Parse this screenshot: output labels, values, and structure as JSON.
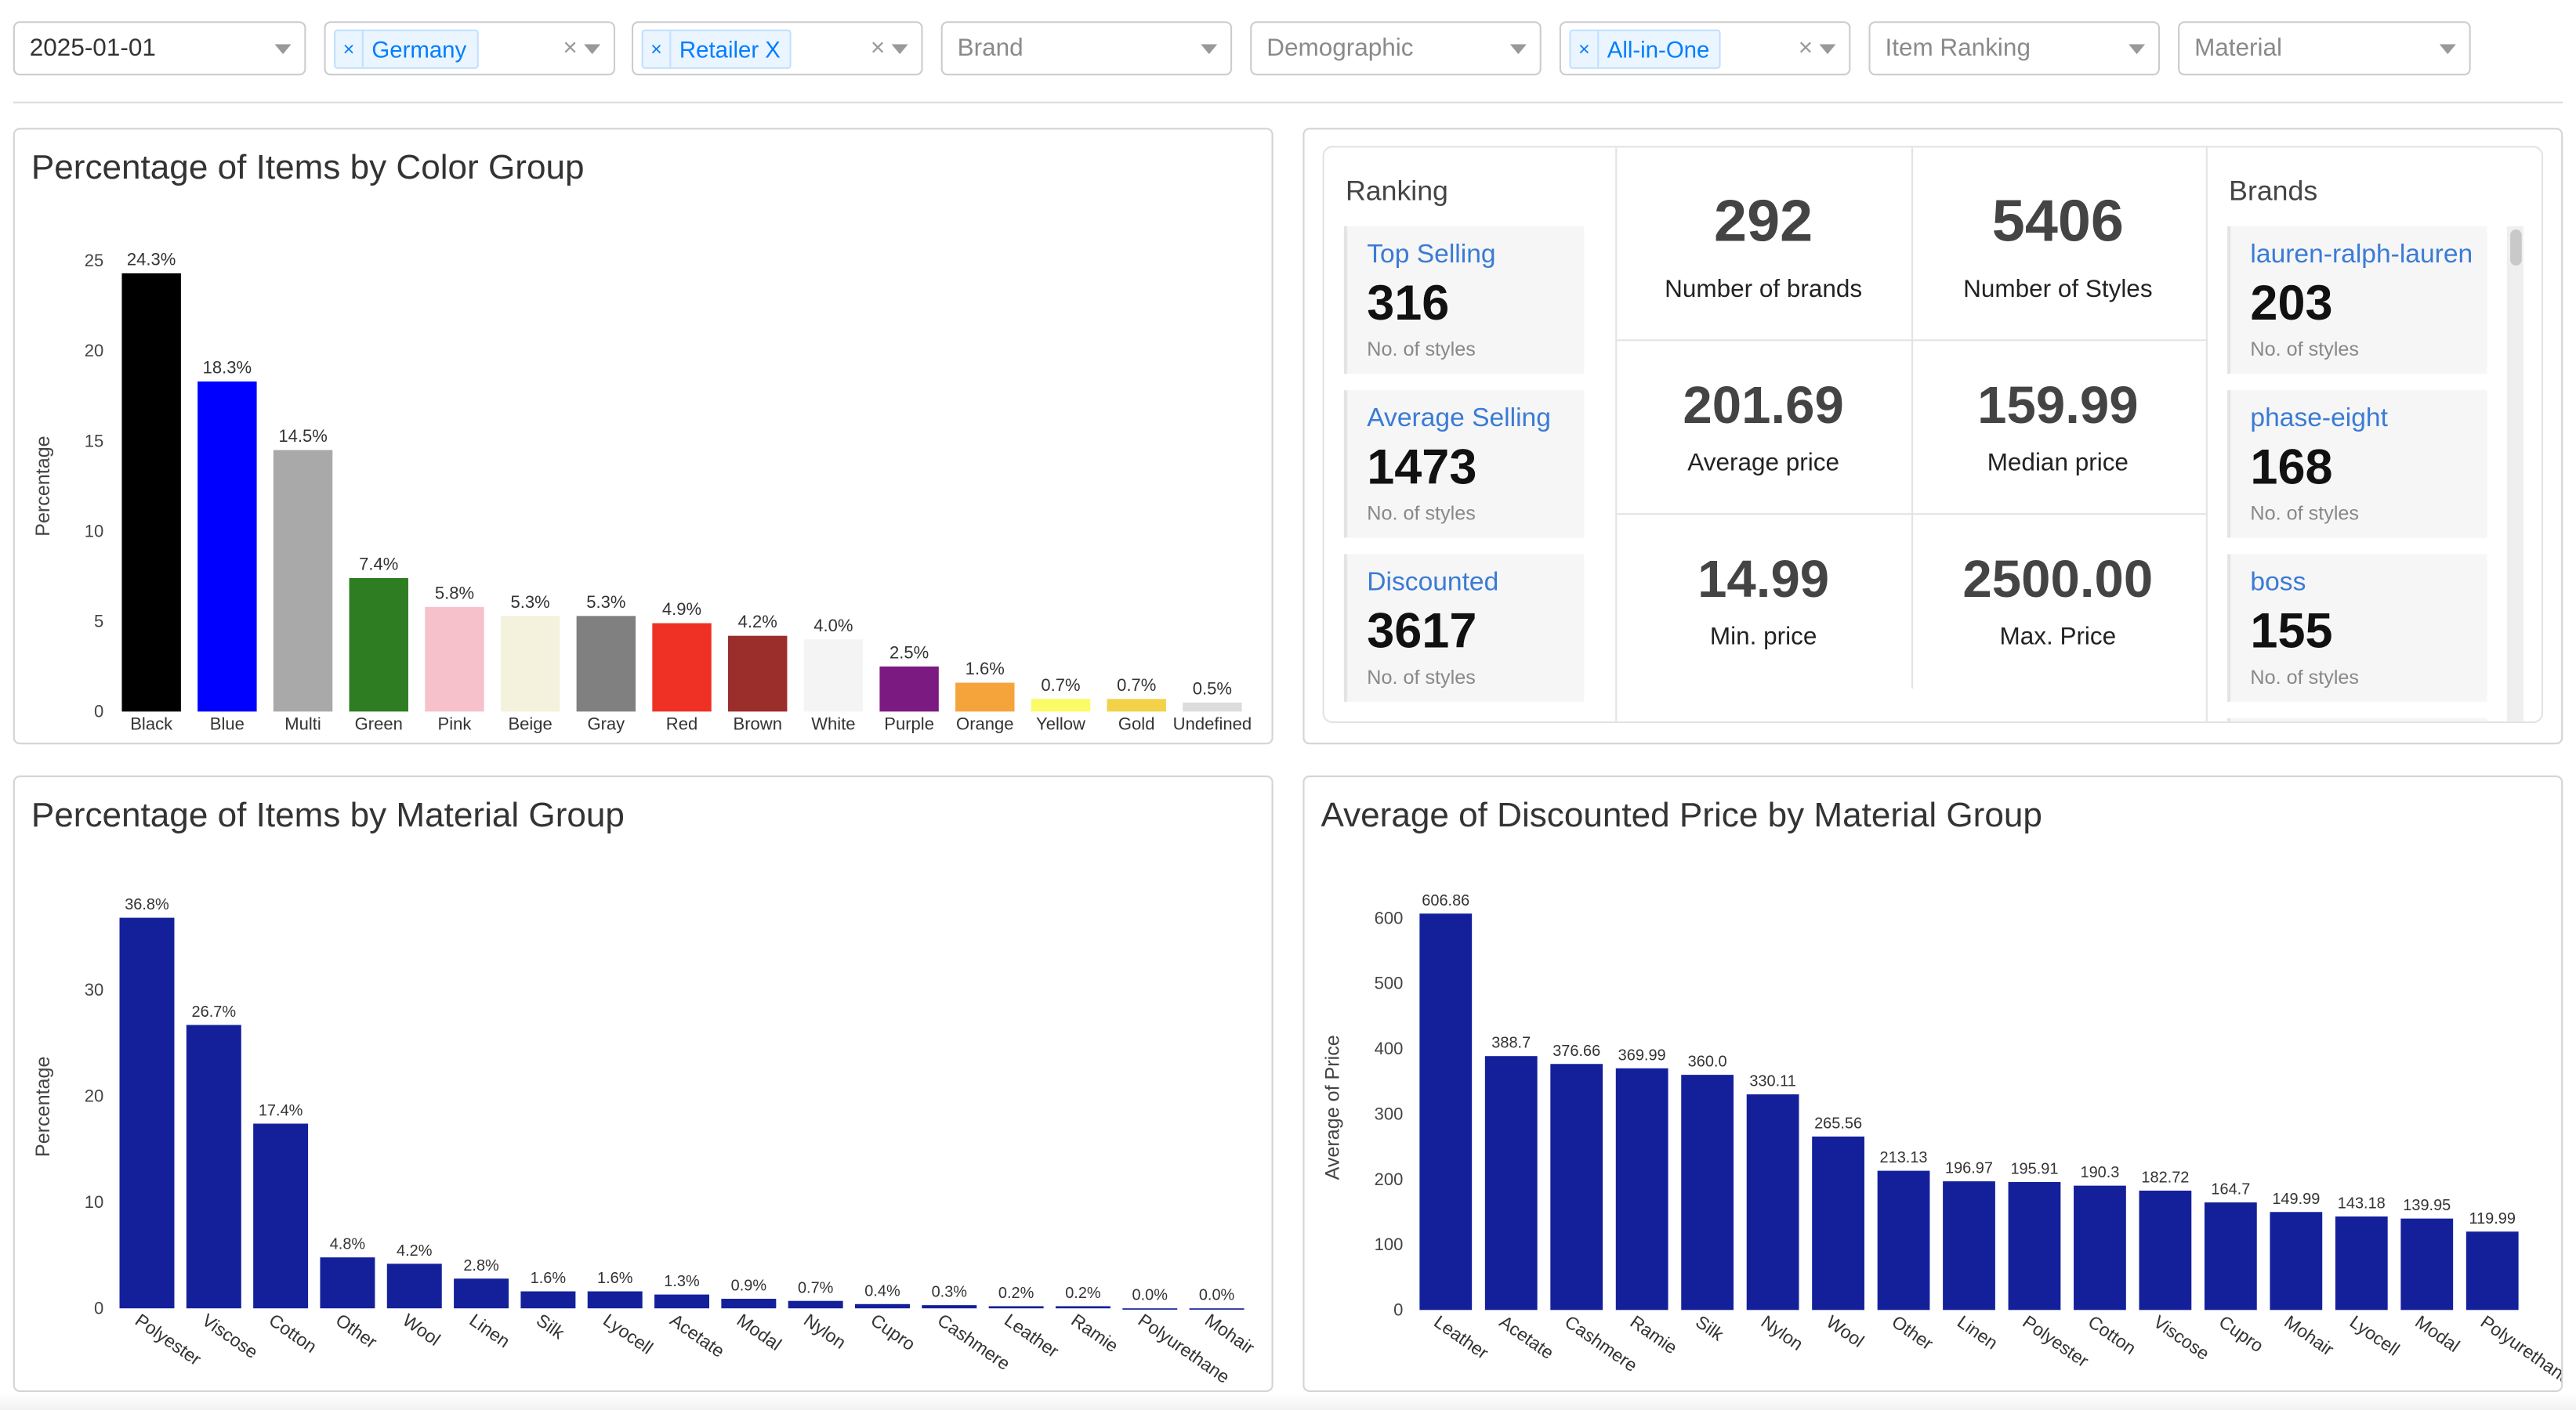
{
  "filters": [
    {
      "value": "2025-01-01",
      "chip": false,
      "clear": false
    },
    {
      "value": "Germany",
      "chip": true,
      "clear": true
    },
    {
      "value": "Retailer X",
      "chip": true,
      "clear": true
    },
    {
      "placeholder": "Brand"
    },
    {
      "placeholder": "Demographic"
    },
    {
      "value": "All-in-One",
      "chip": true,
      "clear": true
    },
    {
      "placeholder": "Item Ranking"
    },
    {
      "placeholder": "Material"
    }
  ],
  "clear_symbol": "×",
  "chip_remove_symbol": "×",
  "stats": {
    "ranking_title": "Ranking",
    "ranking": [
      {
        "label": "Top Selling",
        "value": "316",
        "sub": "No. of styles"
      },
      {
        "label": "Average Selling",
        "value": "1473",
        "sub": "No. of styles"
      },
      {
        "label": "Discounted",
        "value": "3617",
        "sub": "No. of styles"
      }
    ],
    "metrics": [
      {
        "value": "292",
        "label": "Number of brands"
      },
      {
        "value": "5406",
        "label": "Number of Styles"
      },
      {
        "value": "201.69",
        "label": "Average price"
      },
      {
        "value": "159.99",
        "label": "Median price"
      },
      {
        "value": "14.99",
        "label": "Min. price"
      },
      {
        "value": "2500.00",
        "label": "Max. Price"
      }
    ],
    "brands_title": "Brands",
    "brands": [
      {
        "label": "lauren-ralph-lauren",
        "value": "203",
        "sub": "No. of styles"
      },
      {
        "label": "phase-eight",
        "value": "168",
        "sub": "No. of styles"
      },
      {
        "label": "boss",
        "value": "155",
        "sub": "No. of styles"
      }
    ]
  },
  "chart_data": [
    {
      "type": "bar",
      "title": "Percentage of Items by Color Group",
      "xlabel": "",
      "ylabel": "Percentage",
      "ylim": [
        0,
        25
      ],
      "yticks": [
        0,
        5,
        10,
        15,
        20,
        25
      ],
      "categories": [
        "Black",
        "Blue",
        "Multi",
        "Green",
        "Pink",
        "Beige",
        "Gray",
        "Red",
        "Brown",
        "White",
        "Purple",
        "Orange",
        "Yellow",
        "Gold",
        "Undefined"
      ],
      "values": [
        24.3,
        18.3,
        14.5,
        7.4,
        5.8,
        5.3,
        5.3,
        4.9,
        4.2,
        4.0,
        2.5,
        1.6,
        0.7,
        0.7,
        0.5
      ],
      "labels": [
        "24.3%",
        "18.3%",
        "14.5%",
        "7.4%",
        "5.8%",
        "5.3%",
        "5.3%",
        "4.9%",
        "4.2%",
        "4.0%",
        "2.5%",
        "1.6%",
        "0.7%",
        "0.7%",
        "0.5%"
      ],
      "colors": [
        "#000000",
        "#0000ff",
        "#a9a9a9",
        "#2e7d22",
        "#f7c1cc",
        "#f4f2dc",
        "#808080",
        "#ee3124",
        "#9b2d2a",
        "#f4f4f4",
        "#7b1a80",
        "#f4a43b",
        "#fbfb66",
        "#f3d24a",
        "#dcdcdc"
      ],
      "grid": false,
      "legend": "none"
    },
    {
      "type": "bar",
      "title": "Percentage of Items by Material Group",
      "xlabel": "",
      "ylabel": "Percentage",
      "ylim": [
        0,
        38
      ],
      "yticks": [
        0,
        10,
        20,
        30
      ],
      "categories": [
        "Polyester",
        "Viscose",
        "Cotton",
        "Other",
        "Wool",
        "Linen",
        "Silk",
        "Lyocell",
        "Acetate",
        "Modal",
        "Nylon",
        "Cupro",
        "Cashmere",
        "Leather",
        "Ramie",
        "Polyurethane",
        "Mohair"
      ],
      "values": [
        36.8,
        26.7,
        17.4,
        4.8,
        4.2,
        2.8,
        1.6,
        1.6,
        1.3,
        0.9,
        0.7,
        0.4,
        0.3,
        0.2,
        0.2,
        0.0,
        0.0
      ],
      "labels": [
        "36.8%",
        "26.7%",
        "17.4%",
        "4.8%",
        "4.2%",
        "2.8%",
        "1.6%",
        "1.6%",
        "1.3%",
        "0.9%",
        "0.7%",
        "0.4%",
        "0.3%",
        "0.2%",
        "0.2%",
        "0.0%",
        "0.0%"
      ],
      "color": "#14209a",
      "grid": false,
      "legend": "none"
    },
    {
      "type": "bar",
      "title": "Average of Discounted Price by Material Group",
      "xlabel": "",
      "ylabel": "Average of Price",
      "ylim": [
        0,
        620
      ],
      "yticks": [
        0,
        100,
        200,
        300,
        400,
        500,
        600
      ],
      "categories": [
        "Leather",
        "Acetate",
        "Cashmere",
        "Ramie",
        "Silk",
        "Nylon",
        "Wool",
        "Other",
        "Linen",
        "Polyester",
        "Cotton",
        "Viscose",
        "Cupro",
        "Mohair",
        "Lyocell",
        "Modal",
        "Polyurethane"
      ],
      "values": [
        606.86,
        388.7,
        376.66,
        369.99,
        360.0,
        330.11,
        265.56,
        213.13,
        196.97,
        195.91,
        190.3,
        182.72,
        164.7,
        149.99,
        143.18,
        139.95,
        119.99
      ],
      "labels": [
        "606.86",
        "388.7",
        "376.66",
        "369.99",
        "360.0",
        "330.11",
        "265.56",
        "213.13",
        "196.97",
        "195.91",
        "190.3",
        "182.72",
        "164.7",
        "149.99",
        "143.18",
        "139.95",
        "119.99"
      ],
      "color": "#14209a",
      "grid": false,
      "legend": "none"
    }
  ]
}
